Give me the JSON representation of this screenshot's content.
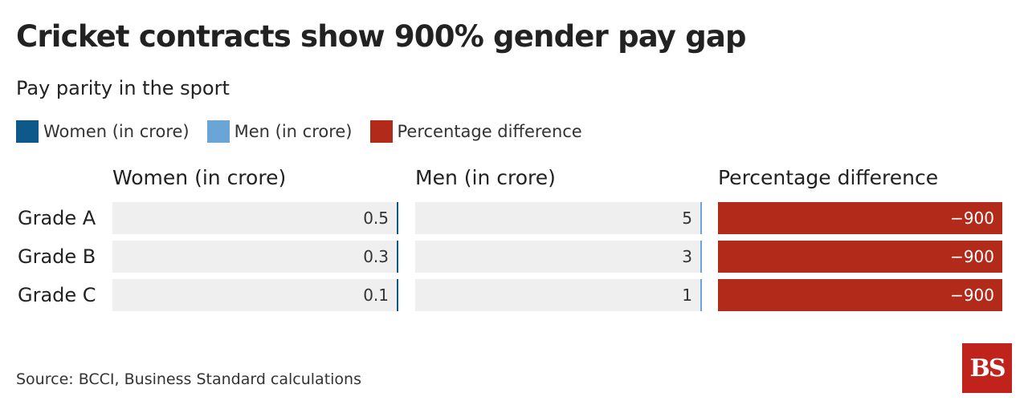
{
  "title": "Cricket contracts show 900% gender pay gap",
  "subtitle": "Pay parity in the sport",
  "legend": [
    {
      "label": "Women (in crore)",
      "color": "#0d5a8a"
    },
    {
      "label": "Men (in crore)",
      "color": "#6aa5d6"
    },
    {
      "label": "Percentage difference",
      "color": "#b22a19"
    }
  ],
  "source": "Source: BCCI, Business Standard calculations",
  "logo_text": "BS",
  "chart_data": {
    "type": "table",
    "columns": [
      "Women (in crore)",
      "Men (in crore)",
      "Percentage difference"
    ],
    "rows": [
      {
        "label": "Grade A",
        "women": 0.5,
        "men": 5,
        "pct": -900,
        "women_text": "0.5",
        "men_text": "5",
        "pct_text": "−900"
      },
      {
        "label": "Grade B",
        "women": 0.3,
        "men": 3,
        "pct": -900,
        "women_text": "0.3",
        "men_text": "3",
        "pct_text": "−900"
      },
      {
        "label": "Grade C",
        "women": 0.1,
        "men": 1,
        "pct": -900,
        "women_text": "0.1",
        "men_text": "1",
        "pct_text": "−900"
      }
    ],
    "women_max": 2000,
    "men_max": 1000,
    "pct_max": 900,
    "colors": {
      "women": "#0d5a8a",
      "men": "#6aa5d6",
      "pct": "#b22a19",
      "cell_bg": "#efefef"
    }
  }
}
